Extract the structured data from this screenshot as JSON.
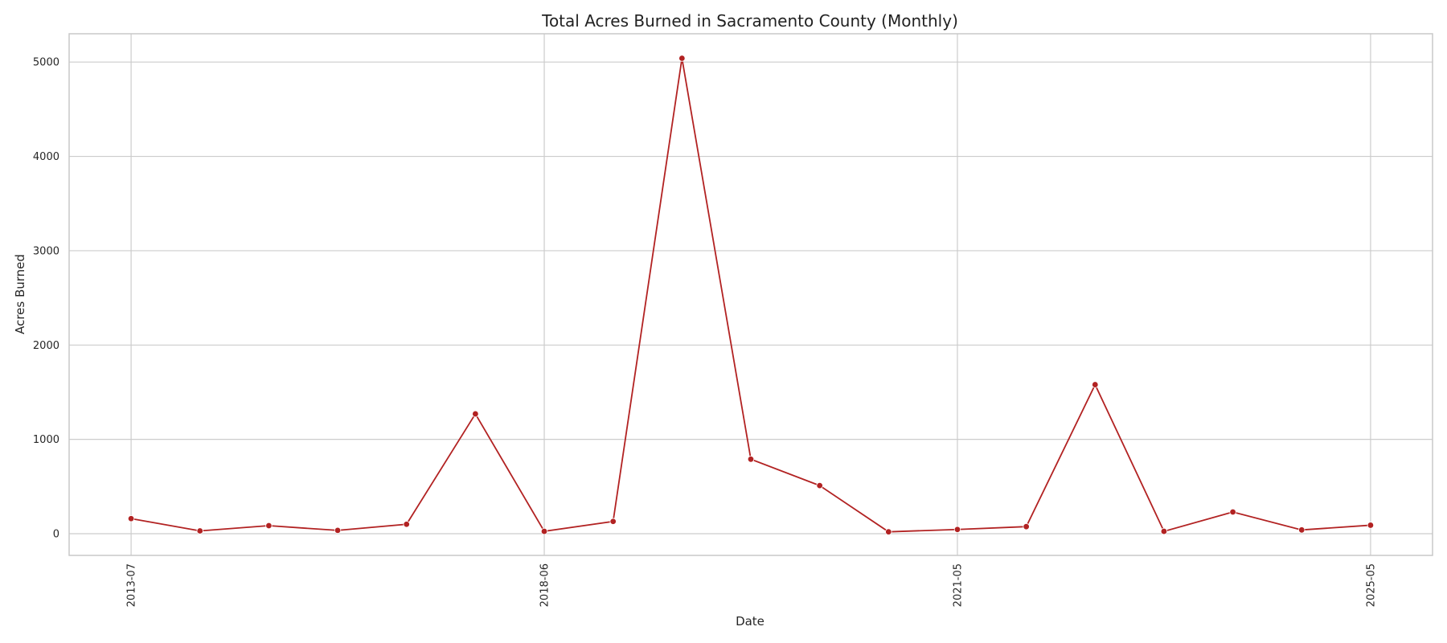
{
  "chart_data": {
    "type": "line",
    "title": "Total Acres Burned in Sacramento County (Monthly)",
    "xlabel": "Date",
    "ylabel": "Acres Burned",
    "x_tick_labels": [
      "2013-07",
      "2018-06",
      "2021-05",
      "2025-05"
    ],
    "x_tick_index": [
      0,
      6,
      12,
      18
    ],
    "y_ticks": [
      0,
      1000,
      2000,
      3000,
      4000,
      5000
    ],
    "ylim": [
      -230,
      5300
    ],
    "xlim": [
      -0.9,
      18.9
    ],
    "grid": true,
    "series": [
      {
        "name": "Acres Burned",
        "color": "#b22222",
        "values": [
          160,
          30,
          85,
          35,
          100,
          1270,
          25,
          130,
          5040,
          790,
          510,
          20,
          45,
          75,
          1580,
          25,
          230,
          40,
          90
        ]
      }
    ]
  }
}
